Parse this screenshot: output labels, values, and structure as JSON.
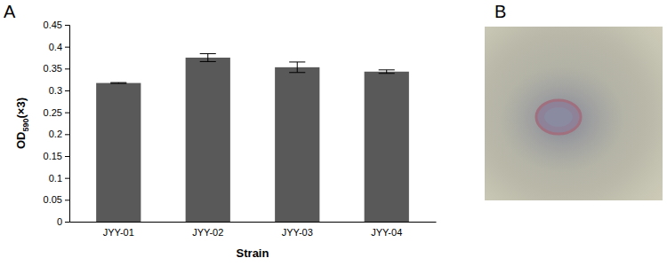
{
  "panels": [
    {
      "label": "A"
    },
    {
      "label": "B"
    }
  ],
  "chart_data": {
    "type": "bar",
    "categories": [
      "JYY-01",
      "JYY-02",
      "JYY-03",
      "JYY-04"
    ],
    "values": [
      0.317,
      0.375,
      0.353,
      0.343
    ],
    "errors": [
      0.001,
      0.009,
      0.012,
      0.004
    ],
    "color": "#595959",
    "x_label": "Strain",
    "y_label": "OD590(×3)",
    "ylim": [
      0,
      0.45
    ],
    "yticks": [
      0,
      0.05,
      0.1,
      0.15,
      0.2,
      0.25,
      0.3,
      0.35,
      0.4,
      0.45
    ],
    "grid": false
  }
}
